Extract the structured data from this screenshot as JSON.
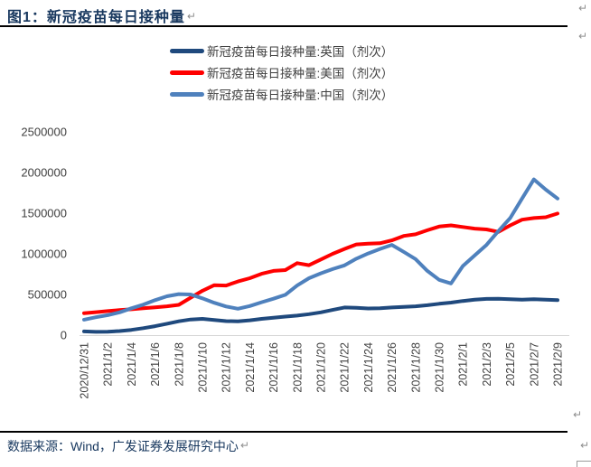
{
  "page": {
    "title": "图1：新冠疫苗每日接种量",
    "return_mark": "↵",
    "source": "数据来源：Wind，广发证券发展研究中心"
  },
  "legend": {
    "items": [
      {
        "label": "新冠疫苗每日接种量:英国（剂次）",
        "color": "#1F497D"
      },
      {
        "label": "新冠疫苗每日接种量:美国（剂次）",
        "color": "#FF0000"
      },
      {
        "label": "新冠疫苗每日接种量:中国（剂次）",
        "color": "#4F81BD"
      }
    ]
  },
  "chart_data": {
    "type": "line",
    "title": "新冠疫苗每日接种量",
    "xlabel": "",
    "ylabel": "",
    "ylim": [
      0,
      2500000
    ],
    "y_ticks": [
      0,
      500000,
      1000000,
      1500000,
      2000000,
      2500000
    ],
    "grid": false,
    "legend_position": "top",
    "axis_color": "#D6D6D6",
    "tick_label_color": "#404040",
    "x": [
      "2020/12/31",
      "2021/1/1",
      "2021/1/2",
      "2021/1/3",
      "2021/1/4",
      "2021/1/5",
      "2021/1/6",
      "2021/1/7",
      "2021/1/8",
      "2021/1/9",
      "2021/1/10",
      "2021/1/11",
      "2021/1/12",
      "2021/1/13",
      "2021/1/14",
      "2021/1/15",
      "2021/1/16",
      "2021/1/17",
      "2021/1/18",
      "2021/1/19",
      "2021/1/20",
      "2021/1/21",
      "2021/1/22",
      "2021/1/23",
      "2021/1/24",
      "2021/1/25",
      "2021/1/26",
      "2021/1/27",
      "2021/1/28",
      "2021/1/29",
      "2021/1/30",
      "2021/1/31",
      "2021/2/1",
      "2021/2/2",
      "2021/2/3",
      "2021/2/4",
      "2021/2/5",
      "2021/2/6",
      "2021/2/7",
      "2021/2/8",
      "2021/2/9"
    ],
    "x_tick_labels": [
      "2020/12/31",
      "2021/1/2",
      "2021/1/4",
      "2021/1/6",
      "2021/1/8",
      "2021/1/10",
      "2021/1/12",
      "2021/1/14",
      "2021/1/16",
      "2021/1/18",
      "2021/1/20",
      "2021/1/22",
      "2021/1/24",
      "2021/1/26",
      "2021/1/28",
      "2021/1/30",
      "2021/2/1",
      "2021/2/3",
      "2021/2/5",
      "2021/2/7",
      "2021/2/9"
    ],
    "x_tick_every": 2,
    "series": [
      {
        "name": "新冠疫苗每日接种量:英国（剂次）",
        "key": "uk",
        "color": "#1F497D",
        "values": [
          45000,
          40000,
          42000,
          50000,
          65000,
          85000,
          110000,
          140000,
          170000,
          192000,
          200000,
          185000,
          172000,
          170000,
          182000,
          200000,
          215000,
          228000,
          240000,
          258000,
          280000,
          310000,
          340000,
          335000,
          328000,
          330000,
          340000,
          348000,
          355000,
          368000,
          385000,
          400000,
          420000,
          435000,
          445000,
          448000,
          442000,
          436000,
          442000,
          437000,
          430000
        ]
      },
      {
        "name": "新冠疫苗每日接种量:美国（剂次）",
        "key": "us",
        "color": "#FF0000",
        "values": [
          270000,
          282000,
          295000,
          308000,
          318000,
          330000,
          342000,
          355000,
          372000,
          460000,
          545000,
          615000,
          610000,
          660000,
          700000,
          755000,
          790000,
          800000,
          885000,
          860000,
          930000,
          1000000,
          1060000,
          1115000,
          1125000,
          1130000,
          1165000,
          1220000,
          1240000,
          1290000,
          1335000,
          1350000,
          1330000,
          1310000,
          1300000,
          1270000,
          1350000,
          1420000,
          1440000,
          1450000,
          1495000
        ]
      },
      {
        "name": "新冠疫苗每日接种量:中国（剂次）",
        "key": "china",
        "color": "#4F81BD",
        "values": [
          190000,
          220000,
          245000,
          280000,
          330000,
          375000,
          430000,
          478000,
          505000,
          500000,
          452000,
          398000,
          352000,
          325000,
          358000,
          405000,
          448000,
          495000,
          610000,
          700000,
          760000,
          812000,
          858000,
          940000,
          1005000,
          1060000,
          1110000,
          1025000,
          935000,
          790000,
          680000,
          635000,
          850000,
          980000,
          1110000,
          1280000,
          1440000,
          1680000,
          1915000,
          1790000,
          1680000
        ]
      }
    ]
  }
}
